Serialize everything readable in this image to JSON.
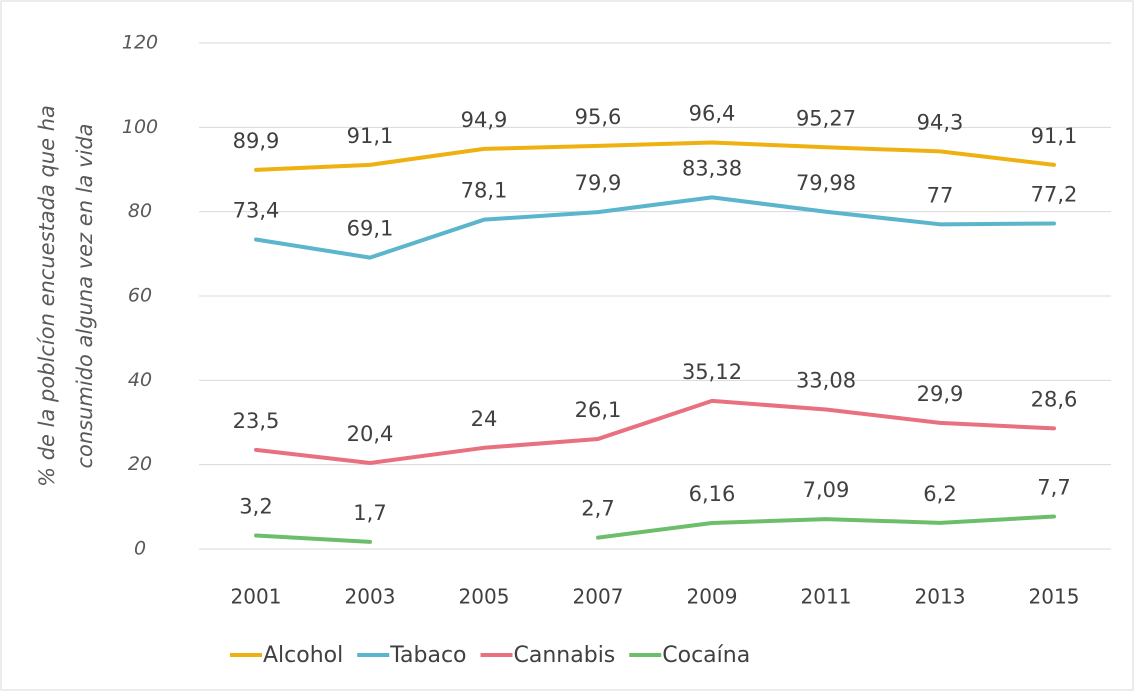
{
  "chart_data": {
    "type": "line",
    "y_label": [
      "% de la poblcíon encuestada que ha",
      "consumido alguna vez en la vida"
    ],
    "categories": [
      "2001",
      "2003",
      "2005",
      "2007",
      "2009",
      "2011",
      "2013",
      "2015"
    ],
    "series": [
      {
        "name": "Alcohol",
        "color": "#eeb111",
        "values": [
          89.9,
          91.1,
          94.9,
          95.6,
          96.4,
          95.27,
          94.3,
          91.1
        ],
        "value_labels": [
          "89,9",
          "91,1",
          "94,9",
          "95,6",
          "96,4",
          "95,27",
          "94,3",
          "91,1"
        ]
      },
      {
        "name": "Tabaco",
        "color": "#5bb5cc",
        "values": [
          73.4,
          69.1,
          78.1,
          79.9,
          83.38,
          79.98,
          77,
          77.2
        ],
        "value_labels": [
          "73,4",
          "69,1",
          "78,1",
          "79,9",
          "83,38",
          "79,98",
          "77",
          "77,2"
        ]
      },
      {
        "name": "Cannabis",
        "color": "#e8707f",
        "values": [
          23.5,
          20.4,
          24,
          26.1,
          35.12,
          33.08,
          29.9,
          28.6
        ],
        "value_labels": [
          "23,5",
          "20,4",
          "24",
          "26,1",
          "35,12",
          "33,08",
          "29,9",
          "28,6"
        ]
      },
      {
        "name": "Cocaína",
        "color": "#6dbe6a",
        "values": [
          3.2,
          1.7,
          null,
          2.7,
          6.16,
          7.09,
          6.2,
          7.7
        ],
        "value_labels": [
          "3,2",
          "1,7",
          null,
          "2,7",
          "6,16",
          "7,09",
          "6,2",
          "7,7"
        ]
      }
    ],
    "ylim": [
      0,
      120
    ],
    "yticks": [
      0,
      20,
      40,
      60,
      80,
      100,
      120
    ],
    "grid": true,
    "legend": "bottom"
  }
}
